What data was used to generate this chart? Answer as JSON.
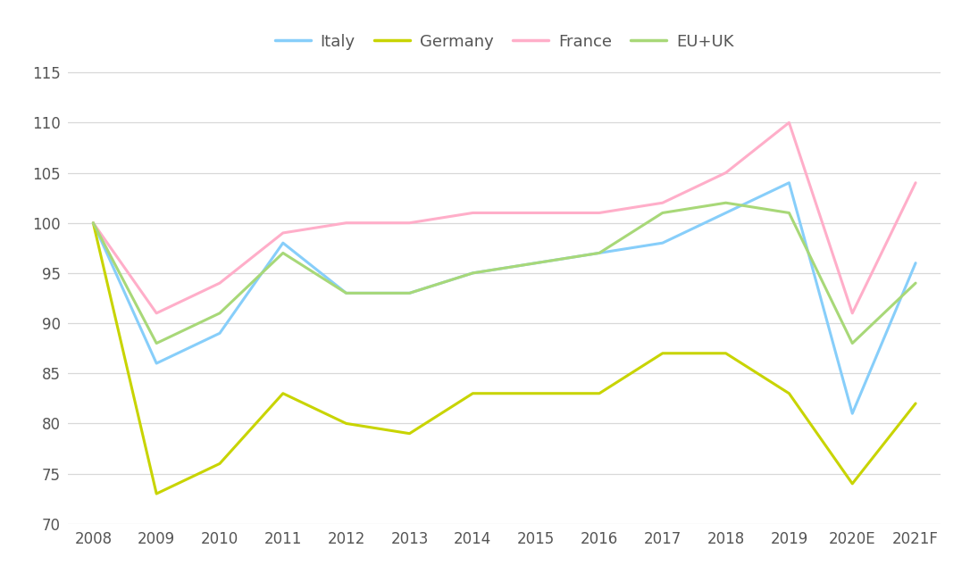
{
  "years": [
    "2008",
    "2009",
    "2010",
    "2011",
    "2012",
    "2013",
    "2014",
    "2015",
    "2016",
    "2017",
    "2018",
    "2019",
    "2020E",
    "2021F"
  ],
  "italy": [
    100,
    86,
    89,
    98,
    93,
    93,
    95,
    96,
    97,
    98,
    101,
    104,
    81,
    96
  ],
  "germany": [
    100,
    73,
    76,
    83,
    80,
    79,
    83,
    83,
    83,
    87,
    87,
    83,
    74,
    82
  ],
  "france": [
    100,
    91,
    94,
    99,
    100,
    100,
    101,
    101,
    101,
    102,
    105,
    110,
    91,
    104
  ],
  "eu_uk": [
    100,
    88,
    91,
    97,
    93,
    93,
    95,
    96,
    97,
    101,
    102,
    101,
    88,
    94
  ],
  "italy_color": "#87CEFA",
  "germany_color": "#C8D400",
  "france_color": "#FFAEC9",
  "eu_uk_color": "#A8D878",
  "italy_label": "Italy",
  "germany_label": "Germany",
  "france_label": "France",
  "eu_uk_label": "EU+UK",
  "ylim_min": 70,
  "ylim_max": 117,
  "yticks": [
    70,
    75,
    80,
    85,
    90,
    95,
    100,
    105,
    110,
    115
  ],
  "background_color": "#ffffff",
  "line_width": 2.2,
  "font_color": "#555555",
  "grid_color": "#d8d8d8"
}
